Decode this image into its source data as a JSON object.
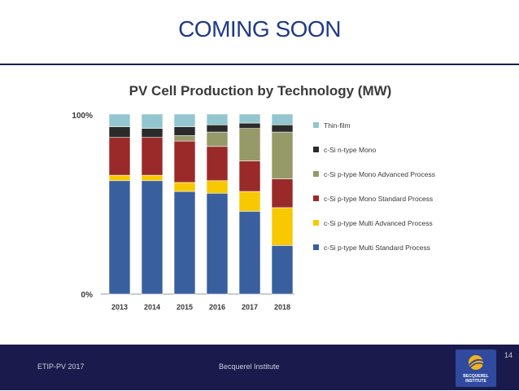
{
  "slide": {
    "title": "COMING SOON",
    "page_number": "14"
  },
  "footer": {
    "left_text": "ETIP-PV 2017",
    "center_text": "Becquerel Institute",
    "logo_line1": "BECQUEREL",
    "logo_line2": "INSTITUTE"
  },
  "colors": {
    "title": "#1f3a86",
    "rule": "#1a1a4d",
    "footer_bg": "#1a1a4d",
    "logo_bg": "#2f4a9e",
    "logo_accent": "#f2b21a"
  },
  "chart_data": {
    "type": "bar",
    "stacked": true,
    "title": "PV Cell Production by Technology (MW)",
    "categories": [
      "2013",
      "2014",
      "2015",
      "2016",
      "2017",
      "2018"
    ],
    "y_tick_labels": [
      "100%",
      "0%"
    ],
    "ylim": [
      0,
      100
    ],
    "legend_position": "right",
    "series": [
      {
        "name": "c-Si p-type Multi Standard Process",
        "color": "#3a5f9e",
        "values": [
          63,
          63,
          57,
          56,
          46,
          27
        ]
      },
      {
        "name": "c-Si p-type Multi Advanced Process",
        "color": "#f8c800",
        "values": [
          3,
          3,
          5,
          7,
          11,
          21
        ]
      },
      {
        "name": "c-Si p-type Mono Standard Process",
        "color": "#9a2a2a",
        "values": [
          21,
          21,
          23,
          19,
          17,
          16
        ]
      },
      {
        "name": "c-Si p-type Mono Advanced Process",
        "color": "#959a68",
        "values": [
          0,
          0,
          3,
          8,
          18,
          26
        ]
      },
      {
        "name": "c-Si n-type Mono",
        "color": "#2b2b2b",
        "values": [
          6,
          5,
          5,
          4,
          3,
          4
        ]
      },
      {
        "name": "Thin-film",
        "color": "#93c6cf",
        "values": [
          7,
          8,
          7,
          6,
          5,
          6
        ]
      }
    ]
  }
}
